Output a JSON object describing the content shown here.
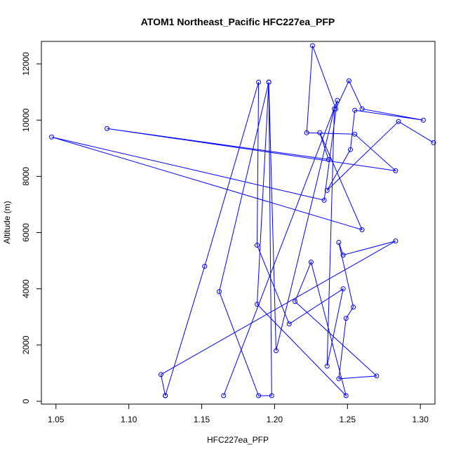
{
  "chart_data": {
    "type": "line",
    "title": "ATOM1 Northeast_Pacific HFC227ea_PFP",
    "xlabel": "HFC227ea_PFP",
    "ylabel": "Altitude (m)",
    "xlim": [
      1.04,
      1.31
    ],
    "ylim": [
      -100,
      12800
    ],
    "x_ticks": [
      1.05,
      1.1,
      1.15,
      1.2,
      1.25,
      1.3
    ],
    "x_tick_labels": [
      "1.05",
      "1.10",
      "1.15",
      "1.20",
      "1.25",
      "1.30"
    ],
    "y_ticks": [
      0,
      2000,
      4000,
      6000,
      8000,
      10000,
      12000
    ],
    "y_tick_labels": [
      "0",
      "2000",
      "4000",
      "6000",
      "8000",
      "10000",
      "12000"
    ],
    "grid": false,
    "marker": "open-circle",
    "series": [
      {
        "color": "#0000ff",
        "x": [
          1.125,
          1.122,
          1.283,
          1.247,
          1.244,
          1.254,
          1.249,
          1.244,
          1.27,
          1.214,
          1.225,
          1.249,
          1.188,
          1.196,
          1.198,
          1.189,
          1.162,
          1.196,
          1.201,
          1.241,
          1.236,
          1.247,
          1.21,
          1.188,
          1.189,
          1.152,
          1.125
        ],
        "y": [
          200,
          950,
          5700,
          5200,
          5650,
          3350,
          2950,
          800,
          900,
          3550,
          4950,
          200,
          3450,
          11350,
          200,
          200,
          3900,
          11350,
          1800,
          10400,
          1250,
          4000,
          2750,
          5550,
          11350,
          4800,
          200
        ]
      },
      {
        "color": "#0000ff",
        "x": [
          1.165,
          1.243,
          1.234,
          1.047,
          1.26,
          1.231,
          1.237,
          1.085,
          1.283,
          1.255,
          1.222,
          1.226,
          1.242,
          1.251,
          1.26,
          1.302,
          1.255,
          1.252,
          1.236,
          1.285,
          1.309
        ],
        "y": [
          200,
          10700,
          7150,
          9400,
          6100,
          9550,
          8600,
          9700,
          8200,
          9500,
          9550,
          12650,
          10400,
          11400,
          10400,
          10000,
          10350,
          8950,
          7500,
          9950,
          9200
        ]
      }
    ]
  }
}
